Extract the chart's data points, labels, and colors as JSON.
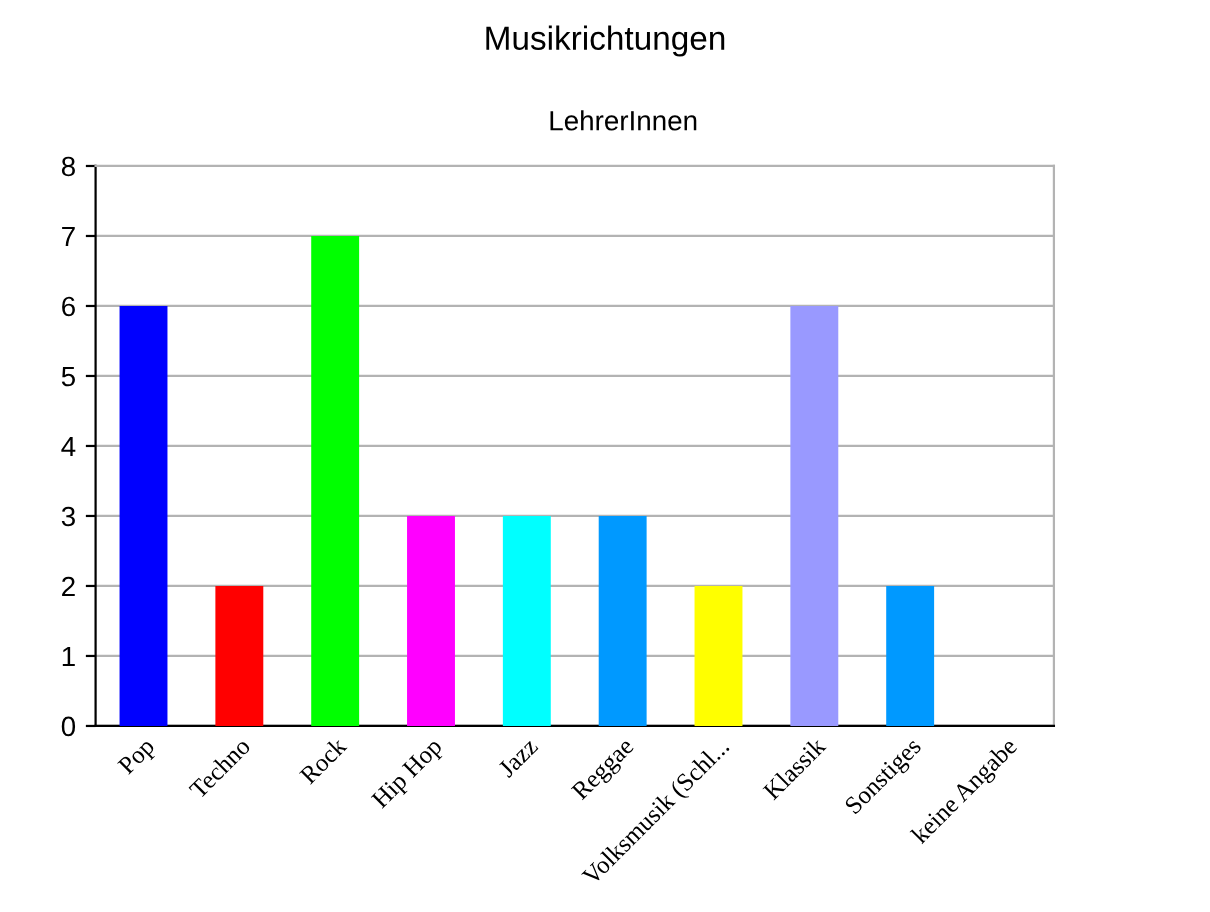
{
  "chart_data": {
    "type": "bar",
    "title": "Musikrichtungen",
    "subtitle": "LehrerInnen",
    "categories": [
      "Pop",
      "Techno",
      "Rock",
      "Hip Hop",
      "Jazz",
      "Reggae",
      "Volksmusik (Schl...",
      "Klassik",
      "Sonstiges",
      "keine Angabe"
    ],
    "values": [
      6,
      2,
      7,
      3,
      3,
      3,
      2,
      6,
      2,
      0
    ],
    "colors": [
      "#0000ff",
      "#ff0000",
      "#00ff00",
      "#ff00ff",
      "#00ffff",
      "#0099ff",
      "#ffff00",
      "#9999ff",
      "#0099ff",
      "#0099ff"
    ],
    "ylim": [
      0,
      8
    ],
    "yticks": [
      0,
      1,
      2,
      3,
      4,
      5,
      6,
      7,
      8
    ],
    "grid": "y"
  }
}
